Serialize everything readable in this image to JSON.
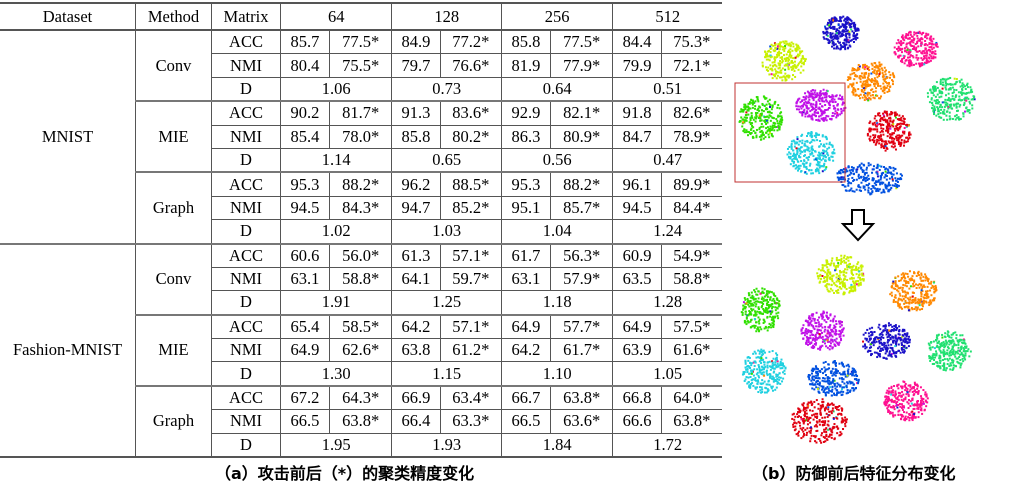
{
  "table": {
    "headers": [
      "Dataset",
      "Method",
      "Matrix",
      "64",
      "128",
      "256",
      "512"
    ],
    "datasets": [
      {
        "name": "MNIST",
        "methods": [
          {
            "name": "Conv",
            "acc": [
              "85.7",
              "77.5*",
              "84.9",
              "77.2*",
              "85.8",
              "77.5*",
              "84.4",
              "75.3*"
            ],
            "nmi": [
              "80.4",
              "75.5*",
              "79.7",
              "76.6*",
              "81.9",
              "77.9*",
              "79.9",
              "72.1*"
            ],
            "d": [
              "1.06",
              "0.73",
              "0.64",
              "0.51"
            ]
          },
          {
            "name": "MIE",
            "acc": [
              "90.2",
              "81.7*",
              "91.3",
              "83.6*",
              "92.9",
              "82.1*",
              "91.8",
              "82.6*"
            ],
            "nmi": [
              "85.4",
              "78.0*",
              "85.8",
              "80.2*",
              "86.3",
              "80.9*",
              "84.7",
              "78.9*"
            ],
            "d": [
              "1.14",
              "0.65",
              "0.56",
              "0.47"
            ]
          },
          {
            "name": "Graph",
            "acc": [
              "95.3",
              "88.2*",
              "96.2",
              "88.5*",
              "95.3",
              "88.2*",
              "96.1",
              "89.9*"
            ],
            "nmi": [
              "94.5",
              "84.3*",
              "94.7",
              "85.2*",
              "95.1",
              "85.7*",
              "94.5",
              "84.4*"
            ],
            "d": [
              "1.02",
              "1.03",
              "1.04",
              "1.24"
            ]
          }
        ]
      },
      {
        "name": "Fashion-MNIST",
        "methods": [
          {
            "name": "Conv",
            "acc": [
              "60.6",
              "56.0*",
              "61.3",
              "57.1*",
              "61.7",
              "56.3*",
              "60.9",
              "54.9*"
            ],
            "nmi": [
              "63.1",
              "58.8*",
              "64.1",
              "59.7*",
              "63.1",
              "57.9*",
              "63.5",
              "58.8*"
            ],
            "d": [
              "1.91",
              "1.25",
              "1.18",
              "1.28"
            ]
          },
          {
            "name": "MIE",
            "acc": [
              "65.4",
              "58.5*",
              "64.2",
              "57.1*",
              "64.9",
              "57.7*",
              "64.9",
              "57.5*"
            ],
            "nmi": [
              "64.9",
              "62.6*",
              "63.8",
              "61.2*",
              "64.2",
              "61.7*",
              "63.9",
              "61.6*"
            ],
            "d": [
              "1.30",
              "1.15",
              "1.10",
              "1.05"
            ]
          },
          {
            "name": "Graph",
            "acc": [
              "67.2",
              "64.3*",
              "66.9",
              "63.4*",
              "66.7",
              "63.8*",
              "66.8",
              "64.0*"
            ],
            "nmi": [
              "66.5",
              "63.8*",
              "66.4",
              "63.3*",
              "66.5",
              "63.6*",
              "66.6",
              "63.8*"
            ],
            "d": [
              "1.95",
              "1.93",
              "1.84",
              "1.72"
            ]
          }
        ]
      }
    ],
    "row_labels": [
      "ACC",
      "NMI",
      "D"
    ]
  },
  "captions": {
    "a": "（a）攻击前后（*）的聚类精度变化",
    "b": "（b）防御前后特征分布变化"
  },
  "cluster_colors": [
    "#c8f000",
    "#1a10c8",
    "#ff1090",
    "#ff8800",
    "#20e070",
    "#30e000",
    "#c010e8",
    "#e00010",
    "#20d0e0",
    "#0050e0"
  ],
  "highlight_color": "#c03030",
  "arrow_icon": "down-arrow-outline"
}
